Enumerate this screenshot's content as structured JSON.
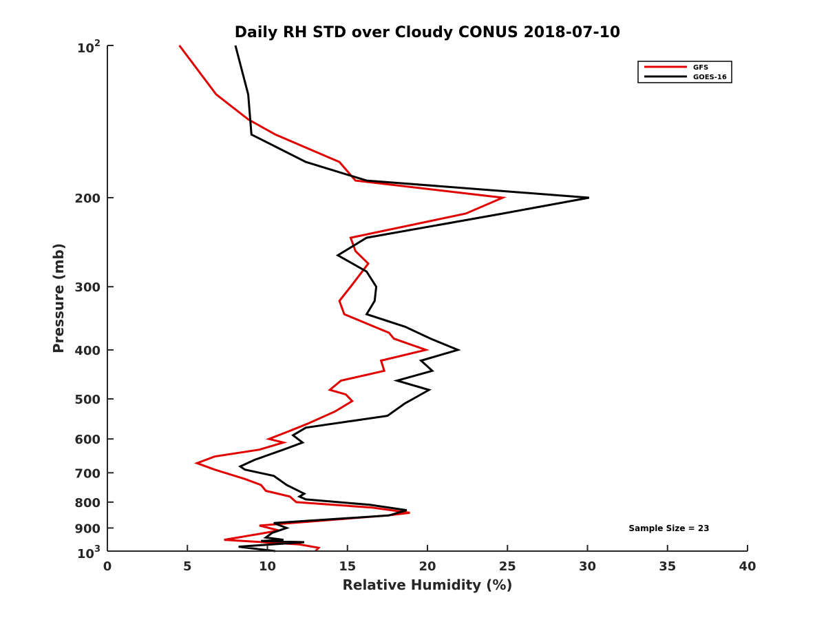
{
  "chart_data": {
    "type": "line",
    "title": "Daily RH STD over Cloudy CONUS 2018-07-10",
    "xlabel": "Relative Humidity (%)",
    "ylabel": "Pressure (mb)",
    "xlim": [
      0,
      40
    ],
    "ylim": [
      100,
      1000
    ],
    "y_scale": "log",
    "y_reversed": true,
    "grid": false,
    "x_ticks": [
      0,
      5,
      10,
      15,
      20,
      25,
      30,
      35,
      40
    ],
    "x_tick_labels": [
      "0",
      "5",
      "10",
      "15",
      "20",
      "25",
      "30",
      "35",
      "40"
    ],
    "y_ticks": [
      {
        "value": 100,
        "base": "10",
        "exp": "2"
      },
      {
        "value": 200,
        "label": "200"
      },
      {
        "value": 300,
        "label": "300"
      },
      {
        "value": 400,
        "label": "400"
      },
      {
        "value": 500,
        "label": "500"
      },
      {
        "value": 600,
        "label": "600"
      },
      {
        "value": 700,
        "label": "700"
      },
      {
        "value": 800,
        "label": "800"
      },
      {
        "value": 900,
        "label": "900"
      },
      {
        "value": 1000,
        "base": "10",
        "exp": "3"
      }
    ],
    "legend": {
      "position": "top-right",
      "entries": [
        {
          "name": "GFS",
          "color": "#e00000"
        },
        {
          "name": "GOES-16",
          "color": "#000000"
        }
      ]
    },
    "annotation": "Sample Size = 23",
    "series": [
      {
        "name": "GFS",
        "color": "#e00000",
        "points": [
          [
            4.5,
            100
          ],
          [
            6.8,
            125
          ],
          [
            8.8,
            140
          ],
          [
            10.5,
            150
          ],
          [
            14.5,
            170
          ],
          [
            15.5,
            185
          ],
          [
            24.7,
            200
          ],
          [
            22.4,
            215
          ],
          [
            15.2,
            240
          ],
          [
            15.5,
            255
          ],
          [
            16.3,
            270
          ],
          [
            15.2,
            300
          ],
          [
            14.5,
            320
          ],
          [
            14.8,
            340
          ],
          [
            17.6,
            370
          ],
          [
            17.9,
            380
          ],
          [
            19.9,
            400
          ],
          [
            17.1,
            420
          ],
          [
            17.3,
            440
          ],
          [
            14.6,
            460
          ],
          [
            13.9,
            480
          ],
          [
            14.9,
            490
          ],
          [
            15.3,
            505
          ],
          [
            14.2,
            530
          ],
          [
            12.5,
            560
          ],
          [
            11.3,
            580
          ],
          [
            10.1,
            600
          ],
          [
            11.0,
            610
          ],
          [
            9.5,
            630
          ],
          [
            6.7,
            650
          ],
          [
            5.6,
            670
          ],
          [
            6.7,
            690
          ],
          [
            8.6,
            720
          ],
          [
            9.6,
            740
          ],
          [
            9.9,
            760
          ],
          [
            11.4,
            780
          ],
          [
            11.8,
            800
          ],
          [
            16.5,
            820
          ],
          [
            18.9,
            840
          ],
          [
            17.5,
            850
          ],
          [
            9.5,
            890
          ],
          [
            10.1,
            900
          ],
          [
            10.7,
            910
          ],
          [
            9.9,
            920
          ],
          [
            7.3,
            950
          ],
          [
            12.0,
            970
          ],
          [
            13.2,
            985
          ],
          [
            13.0,
            1000
          ]
        ]
      },
      {
        "name": "GOES-16",
        "color": "#000000",
        "points": [
          [
            8.0,
            100
          ],
          [
            8.8,
            125
          ],
          [
            9.0,
            150
          ],
          [
            12.4,
            170
          ],
          [
            16.2,
            185
          ],
          [
            30.1,
            200
          ],
          [
            24.7,
            215
          ],
          [
            16.2,
            240
          ],
          [
            14.4,
            260
          ],
          [
            16.2,
            280
          ],
          [
            16.8,
            300
          ],
          [
            16.7,
            320
          ],
          [
            16.2,
            340
          ],
          [
            18.6,
            360
          ],
          [
            20.2,
            380
          ],
          [
            21.9,
            400
          ],
          [
            19.6,
            420
          ],
          [
            20.3,
            440
          ],
          [
            18.1,
            460
          ],
          [
            20.1,
            480
          ],
          [
            19.1,
            500
          ],
          [
            18.6,
            510
          ],
          [
            17.5,
            540
          ],
          [
            12.4,
            570
          ],
          [
            11.6,
            590
          ],
          [
            11.9,
            600
          ],
          [
            12.2,
            610
          ],
          [
            11.0,
            630
          ],
          [
            9.2,
            660
          ],
          [
            8.3,
            680
          ],
          [
            8.6,
            690
          ],
          [
            10.4,
            710
          ],
          [
            11.2,
            740
          ],
          [
            12.3,
            770
          ],
          [
            12.0,
            780
          ],
          [
            12.4,
            790
          ],
          [
            16.4,
            810
          ],
          [
            18.7,
            830
          ],
          [
            17.6,
            850
          ],
          [
            10.4,
            880
          ],
          [
            11.2,
            900
          ],
          [
            10.3,
            920
          ],
          [
            9.9,
            940
          ],
          [
            11.0,
            950
          ],
          [
            9.6,
            955
          ],
          [
            12.3,
            960
          ],
          [
            8.2,
            980
          ],
          [
            10.5,
            1000
          ]
        ]
      }
    ]
  }
}
